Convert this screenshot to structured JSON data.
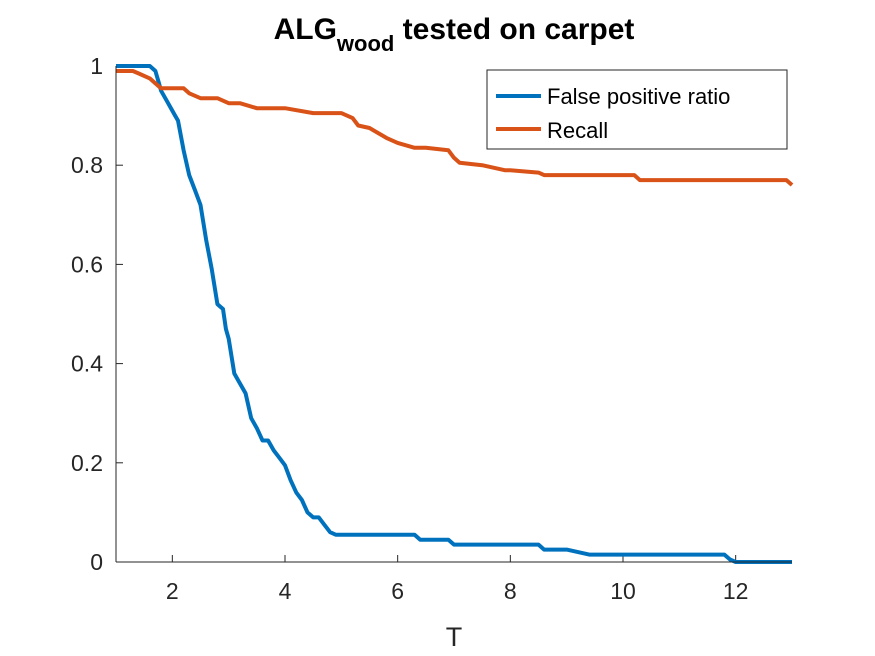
{
  "chart_data": {
    "type": "line",
    "title": "ALG",
    "title_subscript": "wood",
    "title_suffix": " tested on carpet",
    "xlabel": "T",
    "ylabel": "",
    "xlim": [
      1,
      13
    ],
    "ylim": [
      0,
      1
    ],
    "xticks": [
      2,
      4,
      6,
      8,
      10,
      12
    ],
    "yticks": [
      0,
      0.2,
      0.4,
      0.6,
      0.8,
      1
    ],
    "xtick_labels": [
      "2",
      "4",
      "6",
      "8",
      "10",
      "12"
    ],
    "ytick_labels": [
      "0",
      "0.2",
      "0.4",
      "0.6",
      "0.8",
      "1"
    ],
    "grid": false,
    "legend_position": "top-right",
    "series": [
      {
        "name": "False positive ratio",
        "color": "#0072BD",
        "x": [
          1,
          1.2,
          1.4,
          1.6,
          1.7,
          1.75,
          1.8,
          1.9,
          2.0,
          2.05,
          2.1,
          2.15,
          2.2,
          2.3,
          2.4,
          2.5,
          2.6,
          2.7,
          2.8,
          2.85,
          2.9,
          2.95,
          3.0,
          3.1,
          3.2,
          3.3,
          3.4,
          3.5,
          3.6,
          3.7,
          3.8,
          3.9,
          4.0,
          4.1,
          4.2,
          4.3,
          4.4,
          4.5,
          4.6,
          4.7,
          4.8,
          4.9,
          5.0,
          5.1,
          5.2,
          5.5,
          6.0,
          6.3,
          6.4,
          6.5,
          6.9,
          7.0,
          7.5,
          8.0,
          8.5,
          8.6,
          9.0,
          9.4,
          9.5,
          10.0,
          11.0,
          11.8,
          11.9,
          12.0,
          13.0
        ],
        "y": [
          1,
          1,
          1,
          1,
          0.99,
          0.97,
          0.95,
          0.93,
          0.91,
          0.9,
          0.89,
          0.86,
          0.83,
          0.78,
          0.75,
          0.72,
          0.65,
          0.59,
          0.52,
          0.515,
          0.51,
          0.47,
          0.45,
          0.38,
          0.36,
          0.34,
          0.29,
          0.27,
          0.245,
          0.245,
          0.225,
          0.21,
          0.195,
          0.165,
          0.14,
          0.125,
          0.1,
          0.09,
          0.09,
          0.075,
          0.06,
          0.055,
          0.055,
          0.055,
          0.055,
          0.055,
          0.055,
          0.055,
          0.045,
          0.045,
          0.045,
          0.035,
          0.035,
          0.035,
          0.035,
          0.025,
          0.025,
          0.015,
          0.015,
          0.015,
          0.015,
          0.015,
          0.005,
          0.0,
          0.0
        ]
      },
      {
        "name": "Recall",
        "color": "#D95319",
        "x": [
          1,
          1.3,
          1.4,
          1.6,
          1.7,
          1.8,
          2.0,
          2.2,
          2.3,
          2.5,
          2.8,
          3.0,
          3.2,
          3.5,
          4.0,
          4.5,
          5.0,
          5.2,
          5.3,
          5.5,
          5.8,
          6.0,
          6.3,
          6.5,
          6.9,
          7.0,
          7.1,
          7.5,
          7.9,
          8.0,
          8.5,
          8.6,
          9.0,
          9.5,
          10.0,
          10.2,
          10.3,
          10.5,
          11.0,
          11.5,
          12.0,
          12.5,
          12.9,
          13.0
        ],
        "y": [
          0.99,
          0.99,
          0.985,
          0.975,
          0.965,
          0.955,
          0.955,
          0.955,
          0.945,
          0.935,
          0.935,
          0.925,
          0.925,
          0.915,
          0.915,
          0.905,
          0.905,
          0.895,
          0.88,
          0.875,
          0.855,
          0.845,
          0.835,
          0.835,
          0.83,
          0.815,
          0.805,
          0.8,
          0.79,
          0.79,
          0.785,
          0.78,
          0.78,
          0.78,
          0.78,
          0.78,
          0.77,
          0.77,
          0.77,
          0.77,
          0.77,
          0.77,
          0.77,
          0.76
        ]
      }
    ]
  }
}
